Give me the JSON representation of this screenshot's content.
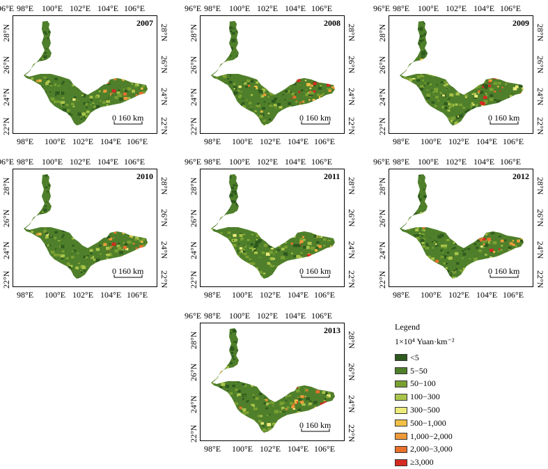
{
  "ticks": {
    "lon_top": [
      "96°E",
      "98°E",
      "100°E",
      "102°E",
      "104°E",
      "106°E"
    ],
    "lon_bottom": [
      "98°E",
      "100°E",
      "102°E",
      "104°E",
      "106°E"
    ],
    "lat": [
      "28°N",
      "26°N",
      "24°N",
      "22°N"
    ]
  },
  "scale_bar": {
    "label": "0 160 km"
  },
  "panels": [
    {
      "year": "2007"
    },
    {
      "year": "2008"
    },
    {
      "year": "2009"
    },
    {
      "year": "2010"
    },
    {
      "year": "2011"
    },
    {
      "year": "2012"
    },
    {
      "year": "2013"
    }
  ],
  "legend": {
    "title": "Legend",
    "unit": "1×10⁴ Yuan·km⁻²",
    "items": [
      {
        "label": "<5",
        "color": "#2f5a1f"
      },
      {
        "label": "5−50",
        "color": "#4f7f2a"
      },
      {
        "label": "50−100",
        "color": "#7aa032"
      },
      {
        "label": "100−300",
        "color": "#a9c44a"
      },
      {
        "label": "300−500",
        "color": "#eceb7c"
      },
      {
        "label": "500−1,000",
        "color": "#f2c145"
      },
      {
        "label": "1,000−2,000",
        "color": "#ee9a38"
      },
      {
        "label": "2,000−3,000",
        "color": "#e8702c"
      },
      {
        "label": "≥3,000",
        "color": "#d42a22"
      }
    ]
  }
}
